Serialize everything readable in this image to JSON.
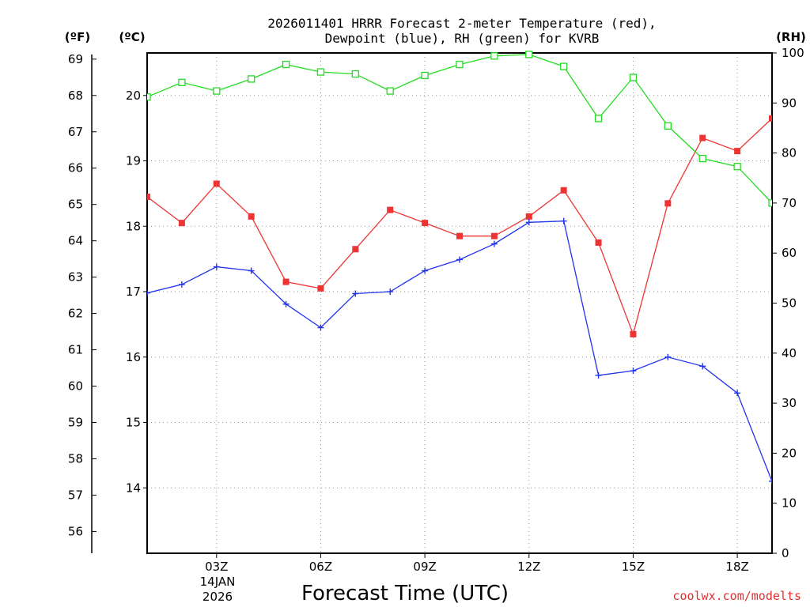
{
  "chart_data": {
    "type": "line",
    "title": {
      "line1": "2026011401 HRRR Forecast 2-meter Temperature (red),",
      "line2": "Dewpoint (blue), RH (green) for KVRB"
    },
    "xlabel": "Forecast Time (UTC)",
    "credit": "coolwx.com/modelts",
    "x": [
      1,
      2,
      3,
      4,
      5,
      6,
      7,
      8,
      9,
      10,
      11,
      12,
      13,
      14,
      15,
      16,
      17,
      18,
      19
    ],
    "xlim": [
      1,
      19
    ],
    "x_ticks": [
      {
        "value": 3,
        "label": "03Z"
      },
      {
        "value": 6,
        "label": "06Z"
      },
      {
        "value": 9,
        "label": "09Z"
      },
      {
        "value": 12,
        "label": "12Z"
      },
      {
        "value": 15,
        "label": "15Z"
      },
      {
        "value": 18,
        "label": "18Z"
      }
    ],
    "date_label": {
      "line1": "14JAN",
      "line2": "2026"
    },
    "axes": {
      "celsius": {
        "unit_label": "(ºC)",
        "ylim": [
          13.0,
          20.65
        ],
        "ticks": [
          14,
          15,
          16,
          17,
          18,
          19,
          20
        ]
      },
      "fahrenheit": {
        "unit_label": "(ºF)",
        "ticks": [
          56,
          57,
          58,
          59,
          60,
          61,
          62,
          63,
          64,
          65,
          66,
          67,
          68,
          69
        ]
      },
      "rh": {
        "unit_label": "(RH)",
        "ylim": [
          0,
          100
        ],
        "ticks": [
          0,
          10,
          20,
          30,
          40,
          50,
          60,
          70,
          80,
          90,
          100
        ]
      }
    },
    "series": [
      {
        "name": "Temperature",
        "unit": "C",
        "color": "#ee3333",
        "marker": "filled-square",
        "values": [
          18.45,
          18.05,
          18.65,
          18.15,
          17.15,
          17.05,
          17.65,
          18.25,
          18.05,
          17.85,
          17.85,
          18.15,
          18.55,
          17.75,
          16.35,
          18.35,
          19.35,
          19.15,
          19.65
        ]
      },
      {
        "name": "Dewpoint",
        "unit": "C",
        "color": "#2233ee",
        "marker": "plus",
        "values": [
          16.98,
          17.11,
          17.38,
          17.32,
          16.81,
          16.45,
          16.97,
          17.0,
          17.32,
          17.49,
          17.73,
          18.06,
          18.08,
          15.72,
          15.79,
          16.0,
          15.86,
          15.45,
          14.1
        ]
      },
      {
        "name": "RH",
        "unit": "%",
        "color": "#22dd22",
        "marker": "open-square",
        "values": [
          91.2,
          94.1,
          92.4,
          94.8,
          97.7,
          96.2,
          95.8,
          92.4,
          95.5,
          97.7,
          99.4,
          99.7,
          97.3,
          86.9,
          95.1,
          85.4,
          78.9,
          77.3,
          70.0
        ]
      }
    ]
  }
}
